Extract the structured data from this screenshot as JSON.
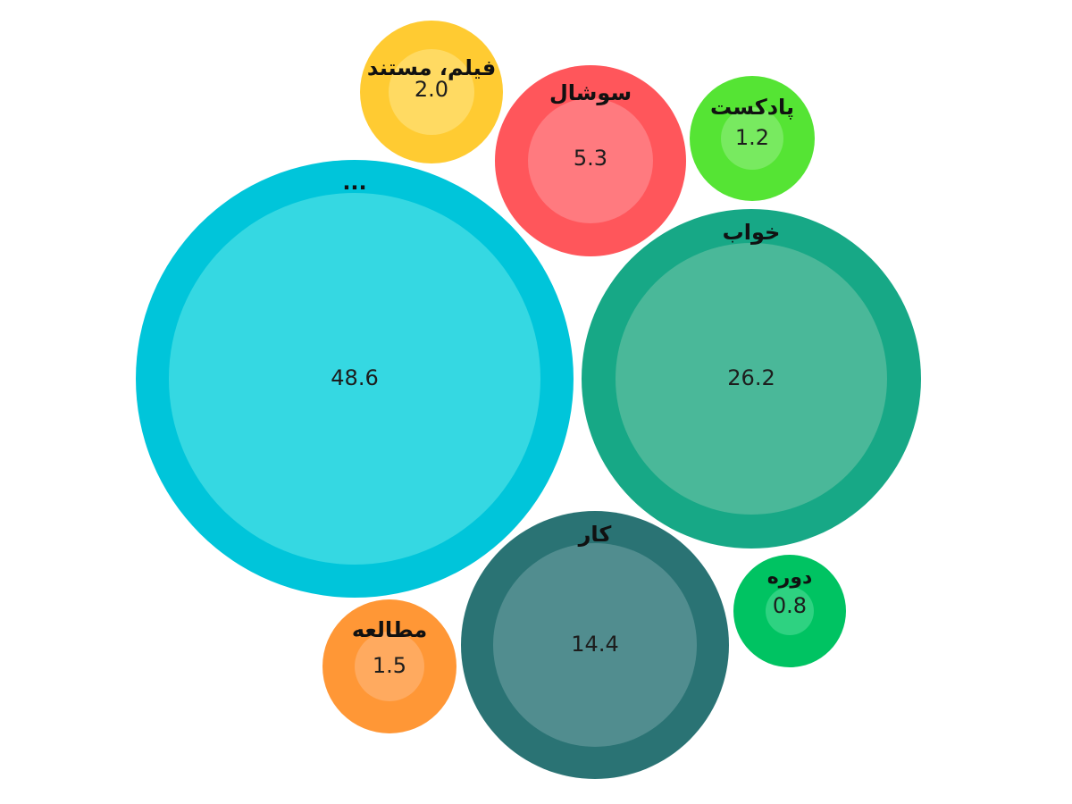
{
  "chart_data": {
    "type": "bubble",
    "title": "",
    "series": [
      {
        "label": "...",
        "value": 48.6,
        "color": "#00C5DA",
        "inner_color": "#35D8E2"
      },
      {
        "label": "خواب",
        "value": 26.2,
        "color": "#17A886",
        "inner_color": "#4AB899"
      },
      {
        "label": "کار",
        "value": 14.4,
        "color": "#2A7374",
        "inner_color": "#518D8F"
      },
      {
        "label": "سوشال",
        "value": 5.3,
        "color": "#FF565B",
        "inner_color": "#FF7A7F"
      },
      {
        "label": "فیلم، مستند",
        "value": 2.0,
        "color": "#FFCB32",
        "inner_color": "#FFDA62"
      },
      {
        "label": "مطالعه",
        "value": 1.5,
        "color": "#FF9736",
        "inner_color": "#FFAA5F"
      },
      {
        "label": "پادکست",
        "value": 1.2,
        "color": "#55E434",
        "inner_color": "#78EA60"
      },
      {
        "label": "دوره",
        "value": 0.8,
        "color": "#00C362",
        "inner_color": "#2ED281"
      }
    ]
  }
}
